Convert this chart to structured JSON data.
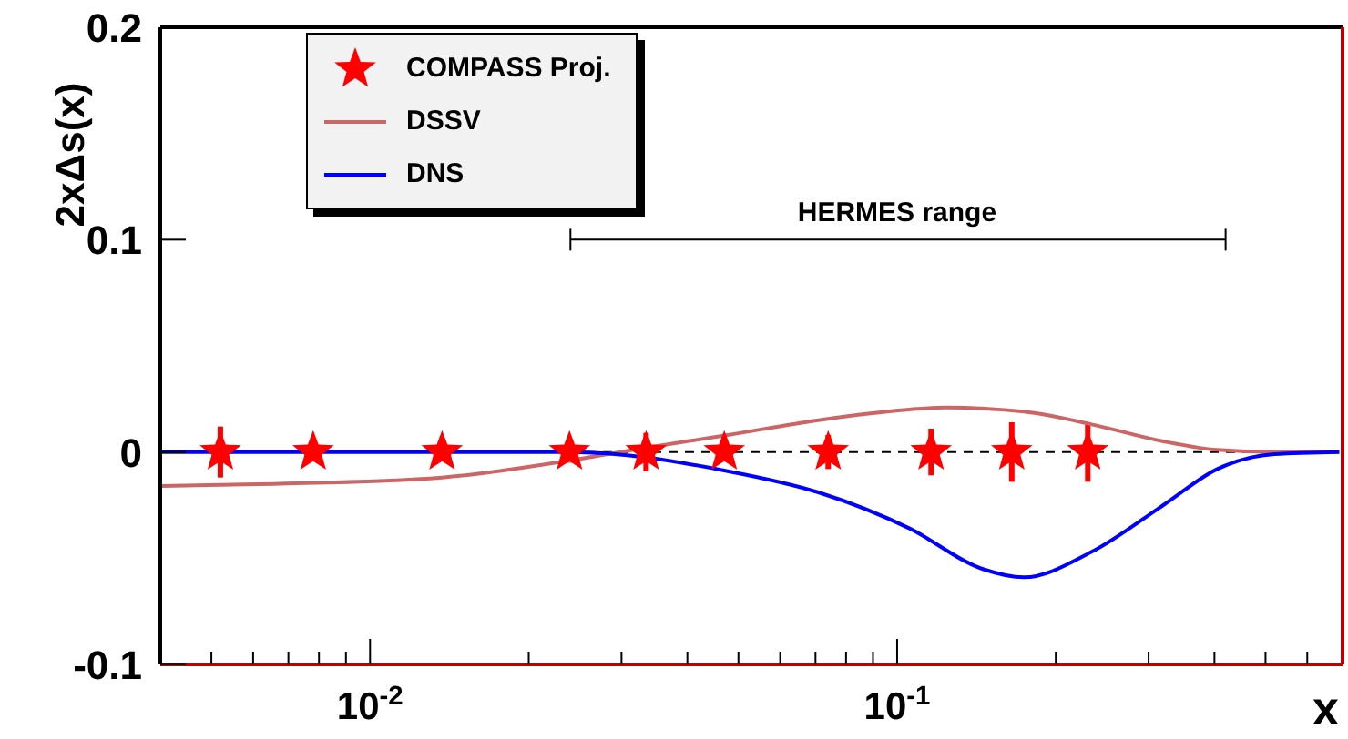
{
  "chart_data": {
    "type": "line",
    "ylabel": "2xΔs(x)",
    "xlabel": "x",
    "log": "x",
    "xlim": [
      0.004,
      0.7
    ],
    "ylim": [
      -0.1,
      0.2
    ],
    "xticks": [
      {
        "value": 0.005,
        "label": null
      },
      {
        "value": 0.006,
        "label": null
      },
      {
        "value": 0.007,
        "label": null
      },
      {
        "value": 0.008,
        "label": null
      },
      {
        "value": 0.009,
        "label": null
      },
      {
        "value": 0.01,
        "label": "10$^{-2}$"
      },
      {
        "value": 0.02,
        "label": null
      },
      {
        "value": 0.03,
        "label": null
      },
      {
        "value": 0.04,
        "label": null
      },
      {
        "value": 0.05,
        "label": null
      },
      {
        "value": 0.06,
        "label": null
      },
      {
        "value": 0.07,
        "label": null
      },
      {
        "value": 0.08,
        "label": null
      },
      {
        "value": 0.09,
        "label": null
      },
      {
        "value": 0.1,
        "label": "10$^{-1}$"
      },
      {
        "value": 0.2,
        "label": null
      },
      {
        "value": 0.3,
        "label": null
      },
      {
        "value": 0.4,
        "label": null
      },
      {
        "value": 0.5,
        "label": null
      },
      {
        "value": 0.6,
        "label": null
      }
    ],
    "yticks": [
      -0.1,
      0,
      0.1,
      0.2
    ],
    "grid": false,
    "legend": "top left",
    "annotations": [
      {
        "text": "HERMES range",
        "x": 0.1,
        "y": 0.1
      }
    ],
    "ref_lines": [
      {
        "axis": "y",
        "value": 0,
        "color": "#000000",
        "line_style": "dashed"
      }
    ],
    "series": [
      {
        "name": "COMPASS Proj.",
        "type": "scatter",
        "marker": "star",
        "color": "#ff0000",
        "x": [
          0.0052,
          0.0078,
          0.0137,
          0.0239,
          0.0334,
          0.047,
          0.074,
          0.116,
          0.165,
          0.23
        ],
        "values": [
          0,
          0,
          0,
          0,
          0,
          0,
          0,
          0,
          0,
          0
        ],
        "errors": [
          0.012,
          0.004,
          0.003,
          0.005,
          0.009,
          0.004,
          0.008,
          0.011,
          0.014,
          0.014
        ]
      },
      {
        "name": "DSSV",
        "color": "#cc6666",
        "x": [
          0.004,
          0.00656,
          0.0137,
          0.0239,
          0.0334,
          0.0477,
          0.0709,
          0.1056,
          0.1238,
          0.174,
          0.234,
          0.32,
          0.405,
          0.52,
          0.69
        ],
        "values": [
          -0.016,
          -0.015,
          -0.012,
          -0.004,
          0.002,
          0.008,
          0.015,
          0.02,
          0.021,
          0.019,
          0.013,
          0.005,
          0.001,
          0,
          0
        ]
      },
      {
        "name": "DNS",
        "color": "#0000ff",
        "x": [
          0.004,
          0.0239,
          0.0334,
          0.0477,
          0.0709,
          0.1056,
          0.145,
          0.174,
          0.234,
          0.32,
          0.405,
          0.52,
          0.69
        ],
        "values": [
          0,
          0,
          null,
          -0.009,
          -0.019,
          -0.036,
          -0.055,
          -0.059,
          -0.047,
          -0.025,
          -0.008,
          -0.001,
          0
        ]
      },
      {
        "color": "#000000",
        "line_style": "solid",
        "x": [
          0.024,
          0.42
        ],
        "values": [
          0.1,
          0.1
        ]
      }
    ]
  }
}
